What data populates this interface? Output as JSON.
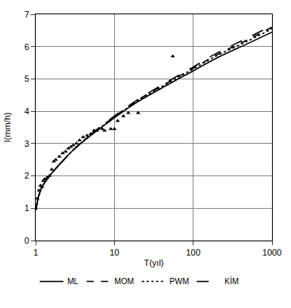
{
  "chart_data": {
    "type": "line",
    "x_label": "T(yıl)",
    "y_label": "I(mm/h)",
    "log": "x",
    "grid": true,
    "legend": "bottom",
    "xlim": [
      1,
      1000
    ],
    "xticks": [
      1,
      10,
      100,
      1000
    ],
    "ylim": [
      0,
      7
    ],
    "yticks": [
      0,
      1,
      2,
      3,
      4,
      5,
      6,
      7
    ],
    "series": [
      {
        "name": "ML",
        "color": "#000000",
        "type": "line",
        "line_style": "solid",
        "x": [
          1.01,
          1.05,
          1.1,
          1.2,
          1.5,
          2,
          3,
          5,
          10,
          20,
          50,
          100,
          200,
          500,
          1000
        ],
        "values": [
          0.95,
          1.2,
          1.4,
          1.65,
          2.0,
          2.35,
          2.8,
          3.25,
          3.8,
          4.3,
          4.85,
          5.25,
          5.65,
          6.1,
          6.45
        ]
      },
      {
        "name": "MOM",
        "color": "#000000",
        "type": "line",
        "line_style": "dash",
        "x": [
          1.01,
          1.05,
          1.1,
          1.2,
          1.5,
          2,
          3,
          5,
          10,
          20,
          50,
          100,
          200,
          500,
          1000
        ],
        "values": [
          0.95,
          1.2,
          1.4,
          1.65,
          2.0,
          2.35,
          2.8,
          3.27,
          3.83,
          4.35,
          4.92,
          5.33,
          5.75,
          6.22,
          6.6
        ]
      },
      {
        "name": "PWM",
        "color": "#000000",
        "type": "line",
        "line_style": "dot",
        "x": [
          1.01,
          1.05,
          1.1,
          1.2,
          1.5,
          2,
          3,
          5,
          10,
          20,
          50,
          100,
          200,
          500,
          1000
        ],
        "values": [
          0.95,
          1.2,
          1.4,
          1.65,
          2.0,
          2.35,
          2.8,
          3.26,
          3.82,
          4.33,
          4.9,
          5.31,
          5.72,
          6.18,
          6.55
        ]
      },
      {
        "name": "KİM",
        "color": "#000000",
        "type": "line",
        "line_style": "longdash",
        "x": [
          1.01,
          1.05,
          1.1,
          1.2,
          1.5,
          2,
          3,
          5,
          10,
          20,
          50,
          100,
          200,
          500,
          1000
        ],
        "values": [
          0.95,
          1.2,
          1.4,
          1.65,
          2.0,
          2.35,
          2.8,
          3.28,
          3.85,
          4.37,
          4.95,
          5.37,
          5.8,
          6.28,
          6.65
        ]
      },
      {
        "color": "#000000",
        "type": "scatter",
        "marker": "triangle-up",
        "x": [
          1.05,
          1.1,
          1.15,
          1.2,
          1.25,
          1.3,
          1.4,
          1.5,
          1.6,
          1.7,
          1.8,
          2,
          2.2,
          2.4,
          2.6,
          2.8,
          3,
          3.3,
          3.6,
          4,
          4.5,
          5,
          5.5,
          6,
          7,
          7.5,
          9,
          10,
          11,
          13,
          15,
          20,
          55
        ],
        "values": [
          1.3,
          1.55,
          1.7,
          1.65,
          1.85,
          1.9,
          1.95,
          2.0,
          2.2,
          2.45,
          2.5,
          2.6,
          2.7,
          2.75,
          2.85,
          2.9,
          2.95,
          3.0,
          3.1,
          3.2,
          3.25,
          3.3,
          3.4,
          3.4,
          3.45,
          3.4,
          3.45,
          3.45,
          3.7,
          3.85,
          3.95,
          3.95,
          5.7
        ]
      }
    ]
  }
}
